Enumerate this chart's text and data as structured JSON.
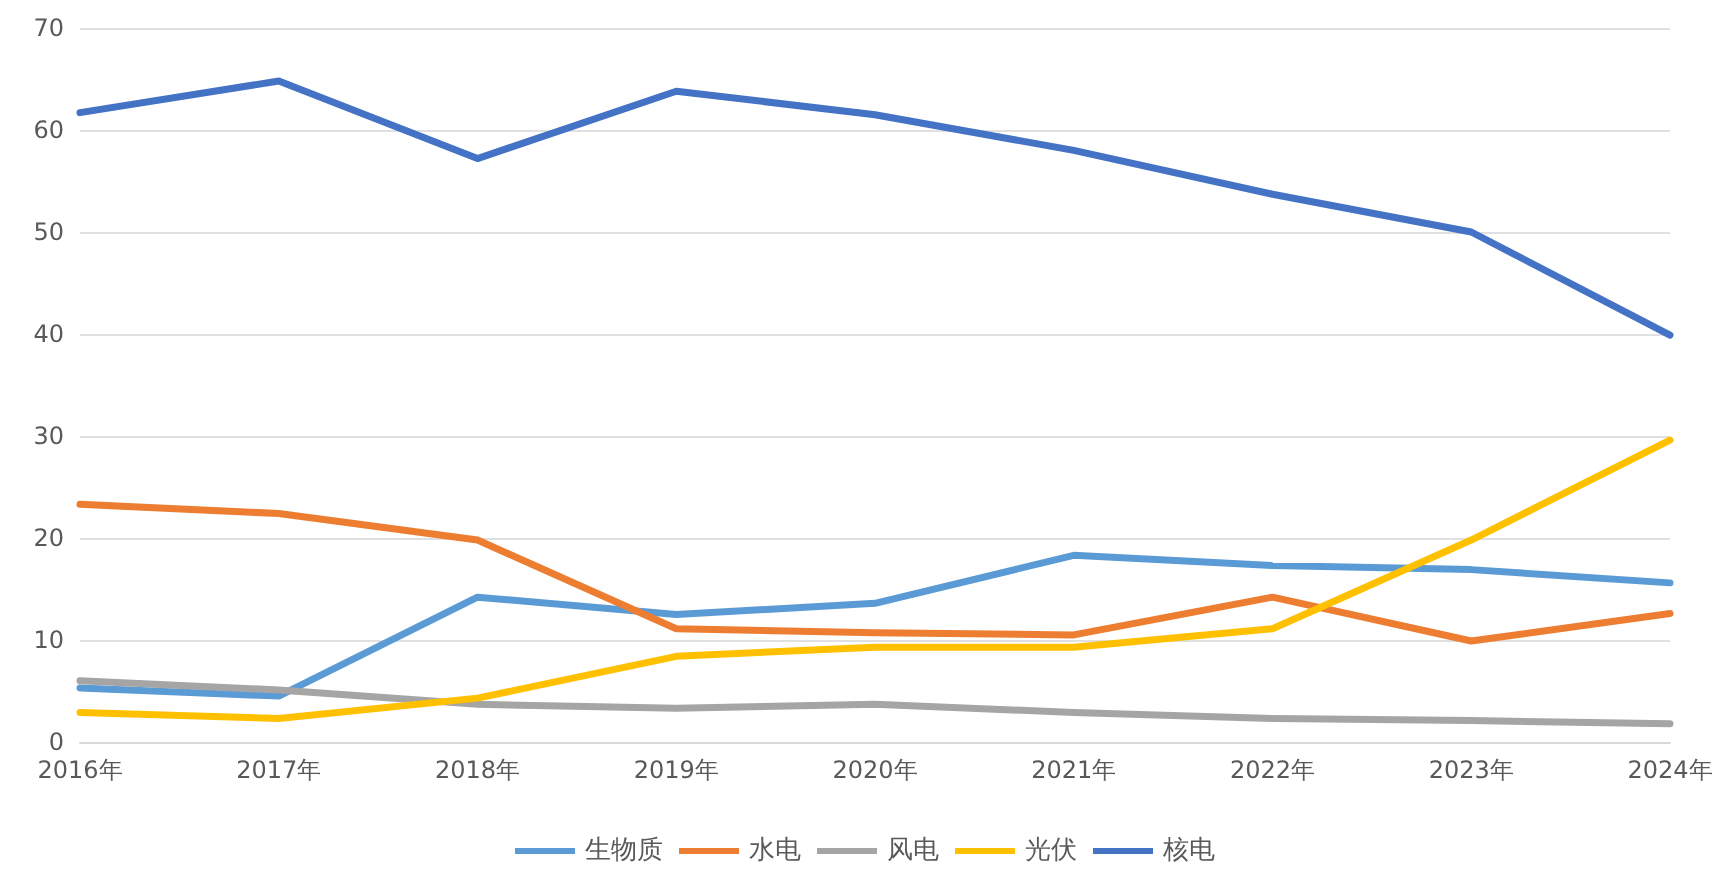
{
  "chart_data": {
    "type": "line",
    "categories": [
      "2016年",
      "2017年",
      "2018年",
      "2019年",
      "2020年",
      "2021年",
      "2022年",
      "2023年",
      "2024年"
    ],
    "series": [
      {
        "name": "生物质",
        "color": "#5b9bd5",
        "values": [
          5.3,
          4.5,
          14.2,
          12.5,
          13.6,
          18.3,
          17.3,
          16.9,
          15.6
        ]
      },
      {
        "name": "水电",
        "color": "#ed7d31",
        "values": [
          23.3,
          22.4,
          19.8,
          11.1,
          10.7,
          10.5,
          14.2,
          9.9,
          12.6
        ]
      },
      {
        "name": "风电",
        "color": "#a5a5a5",
        "values": [
          6.0,
          5.1,
          3.7,
          3.3,
          3.7,
          2.9,
          2.3,
          2.1,
          1.8
        ]
      },
      {
        "name": "光伏",
        "color": "#ffc000",
        "values": [
          2.9,
          2.3,
          4.3,
          8.4,
          9.3,
          9.3,
          11.1,
          19.8,
          29.6
        ]
      },
      {
        "name": "核电",
        "color": "#4472c4",
        "values": [
          61.7,
          64.8,
          57.2,
          63.8,
          61.5,
          58.0,
          53.7,
          50.0,
          39.9
        ]
      }
    ],
    "ylim": [
      0,
      70
    ],
    "yticks": [
      0,
      10,
      20,
      30,
      40,
      50,
      60,
      70
    ],
    "grid": "y",
    "legend": "bottom",
    "marker": "none",
    "line_style": "solid"
  }
}
